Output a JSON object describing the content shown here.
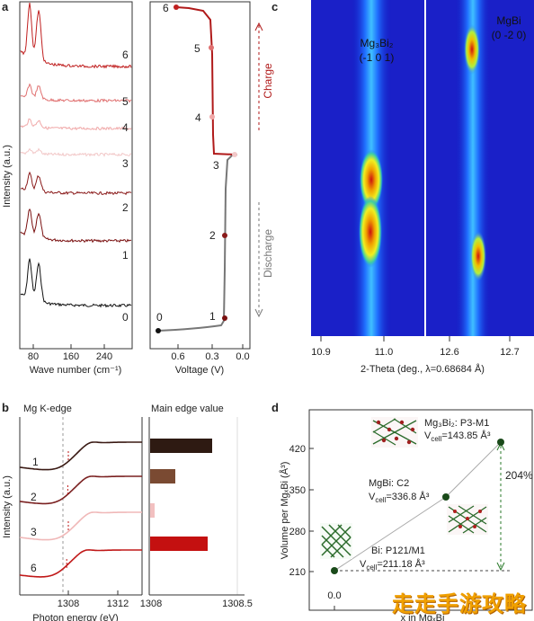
{
  "panels": {
    "a": {
      "letter": "a",
      "ylabel": "Intensity (a.u.)",
      "xlabel": "Wave number (cm⁻¹)",
      "xticks": [
        "80",
        "160",
        "240"
      ],
      "spectra": [
        {
          "label": "0",
          "color": "#111111"
        },
        {
          "label": "1",
          "color": "#7a1010"
        },
        {
          "label": "2",
          "color": "#8a1a1a"
        },
        {
          "label": "3",
          "color": "#f2c8c8"
        },
        {
          "label": "4",
          "color": "#f0a8a8"
        },
        {
          "label": "5",
          "color": "#e07070"
        },
        {
          "label": "6",
          "color": "#c02020"
        }
      ],
      "voltage": {
        "xlabel": "Voltage (V)",
        "xticks": [
          "0.6",
          "0.3",
          "0.0"
        ],
        "points": [
          "0",
          "1",
          "2",
          "3",
          "4",
          "5",
          "6"
        ],
        "charge_label": "Charge",
        "discharge_label": "Discharge",
        "charge_color": "#b01a1a",
        "discharge_color": "#777777"
      }
    },
    "c": {
      "letter": "c",
      "xlabel": "2-Theta (deg., λ=0.68684 Å)",
      "left": {
        "label_line1": "Mg₃Bi₂",
        "label_line2": "(-1 0 1)",
        "xticks": [
          "10.9",
          "11.0"
        ]
      },
      "right": {
        "label_line1": "MgBi",
        "label_line2": "(0 -2 0)",
        "xticks": [
          "12.6",
          "12.7"
        ]
      }
    },
    "b": {
      "letter": "b",
      "title": "Mg K-edge",
      "bar_title": "Main edge value",
      "ylabel": "Intensity (a.u.)",
      "xlabel": "Photon energy (eV)",
      "xticks": [
        "1308",
        "1312"
      ],
      "bar_xticks": [
        "1308",
        "1308.5"
      ],
      "curves": [
        {
          "label": "1",
          "color": "#3a1a14"
        },
        {
          "label": "2",
          "color": "#7a2020"
        },
        {
          "label": "3",
          "color": "#f0b8b8"
        },
        {
          "label": "6",
          "color": "#c01818"
        }
      ],
      "bars": [
        {
          "color": "#2e1a12"
        },
        {
          "color": "#7a4a32"
        },
        {
          "color": "#f2c0c0"
        },
        {
          "color": "#c41010"
        }
      ]
    },
    "d": {
      "letter": "d",
      "ylabel": "Volume per MgₓBi (Å³)",
      "xlabel": "x in MgₓBi",
      "yticks": [
        "210",
        "280",
        "350",
        "420"
      ],
      "xticks": [
        "0.0"
      ],
      "points": [
        {
          "name": "Bi",
          "y": 211.18,
          "ann1": "Bi: P121/M1",
          "ann2": "V",
          "ann2sub": "cell",
          "ann2rest": "=211.18 Å³"
        },
        {
          "name": "MgBi",
          "y": 336.8,
          "ann1": "MgBi: C2",
          "ann2": "V",
          "ann2sub": "cell",
          "ann2rest": "=336.8 Å³"
        },
        {
          "name": "Mg3Bi2",
          "y": 143.85,
          "ann1": "Mg₃Bi₂: P3-M1",
          "ann2": "V",
          "ann2sub": "cell",
          "ann2rest": "=143.85 Å³"
        }
      ],
      "percent": "204%"
    }
  },
  "watermark": "走走手游攻略"
}
